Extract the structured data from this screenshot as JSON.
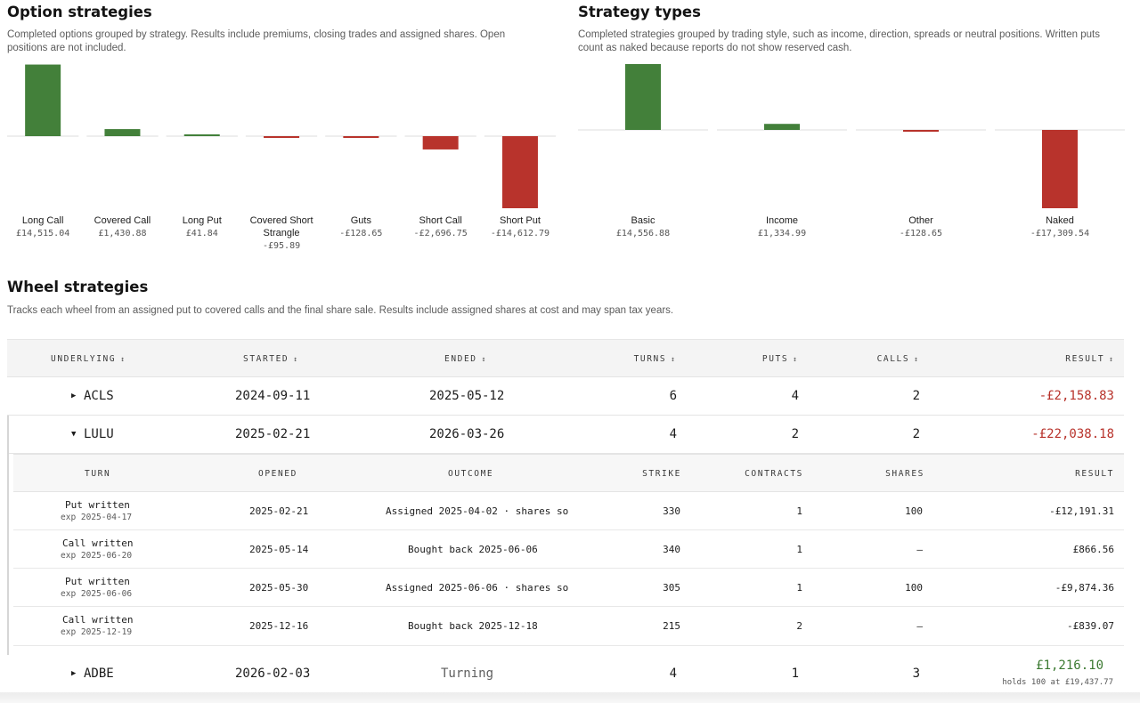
{
  "option_strategies": {
    "title": "Option strategies",
    "description_line1": "Completed options grouped by strategy. Results include premiums, closing trades and assigned shares. Open",
    "description_line2": "positions are not included.",
    "colors": {
      "positive": "#43803a",
      "negative": "#b8332c"
    },
    "chart_data": {
      "type": "bar",
      "categories": [
        "Long Call",
        "Covered Call",
        "Long Put",
        "Covered Short Strangle",
        "Guts",
        "Short Call",
        "Short Put"
      ],
      "category_lines": [
        [
          "Long Call"
        ],
        [
          "Covered Call"
        ],
        [
          "Long Put"
        ],
        [
          "Covered Short",
          "Strangle"
        ],
        [
          "Guts"
        ],
        [
          "Short Call"
        ],
        [
          "Short Put"
        ]
      ],
      "values": [
        14515.04,
        1430.88,
        41.84,
        -95.89,
        -128.65,
        -2696.75,
        -14612.79
      ],
      "value_labels": [
        "£14,515.04",
        "£1,430.88",
        "£41.84",
        "-£95.89",
        "-£128.65",
        "-£2,696.75",
        "-£14,612.79"
      ],
      "unit": "£",
      "grid": false
    }
  },
  "strategy_types": {
    "title": "Strategy types",
    "description_line1": "Completed strategies grouped by trading style, such as income, direction, spreads or neutral positions. Written puts",
    "description_line2": "count as naked because reports do not show reserved cash.",
    "chart_data": {
      "type": "bar",
      "categories": [
        "Basic",
        "Income",
        "Other",
        "Naked"
      ],
      "values": [
        14556.88,
        1334.99,
        -128.65,
        -17309.54
      ],
      "value_labels": [
        "£14,556.88",
        "£1,334.99",
        "-£128.65",
        "-£17,309.54"
      ],
      "unit": "£",
      "grid": false
    }
  },
  "wheel": {
    "title": "Wheel strategies",
    "description": "Tracks each wheel from an assigned put to covered calls and the final share sale. Results include assigned shares at cost and may span tax years.",
    "columns": {
      "underlying": "UNDERLYING",
      "started": "STARTED",
      "ended": "ENDED",
      "turns": "TURNS",
      "puts": "PUTS",
      "calls": "CALLS",
      "result": "RESULT",
      "sort_icon": "↕"
    },
    "rows": [
      {
        "expand_icon": "▶",
        "underlying": "ACLS",
        "started": "2024-09-11",
        "ended": "2025-05-12",
        "turns": "6",
        "puts": "4",
        "calls": "2",
        "result": "-£2,158.83"
      },
      {
        "expand_icon": "▼",
        "underlying": "LULU",
        "started": "2025-02-21",
        "ended": "2026-03-26",
        "turns": "4",
        "puts": "2",
        "calls": "2",
        "result": "-£22,038.18"
      },
      {
        "expand_icon": "▶",
        "underlying": "ADBE",
        "started": "2026-02-03",
        "ended": "Turning",
        "turns": "4",
        "puts": "1",
        "calls": "3",
        "result": "£1,216.10",
        "note": "holds 100 at £19,437.77"
      }
    ],
    "sub_columns": {
      "turn": "TURN",
      "opened": "OPENED",
      "outcome": "OUTCOME",
      "strike": "STRIKE",
      "contracts": "CONTRACTS",
      "shares": "SHARES",
      "result": "RESULT"
    },
    "sub_rows": [
      {
        "turn": "Put written",
        "exp": "exp 2025-04-17",
        "opened": "2025-02-21",
        "outcome": "Assigned 2025-04-02 · shares so",
        "strike": "330",
        "contracts": "1",
        "shares": "100",
        "result": "-£12,191.31"
      },
      {
        "turn": "Call written",
        "exp": "exp 2025-06-20",
        "opened": "2025-05-14",
        "outcome": "Bought back 2025-06-06",
        "strike": "340",
        "contracts": "1",
        "shares": "–",
        "result": "£866.56"
      },
      {
        "turn": "Put written",
        "exp": "exp 2025-06-06",
        "opened": "2025-05-30",
        "outcome": "Assigned 2025-06-06 · shares so",
        "strike": "305",
        "contracts": "1",
        "shares": "100",
        "result": "-£9,874.36"
      },
      {
        "turn": "Call written",
        "exp": "exp 2025-12-19",
        "opened": "2025-12-16",
        "outcome": "Bought back 2025-12-18",
        "strike": "215",
        "contracts": "2",
        "shares": "–",
        "result": "-£839.07"
      }
    ]
  }
}
